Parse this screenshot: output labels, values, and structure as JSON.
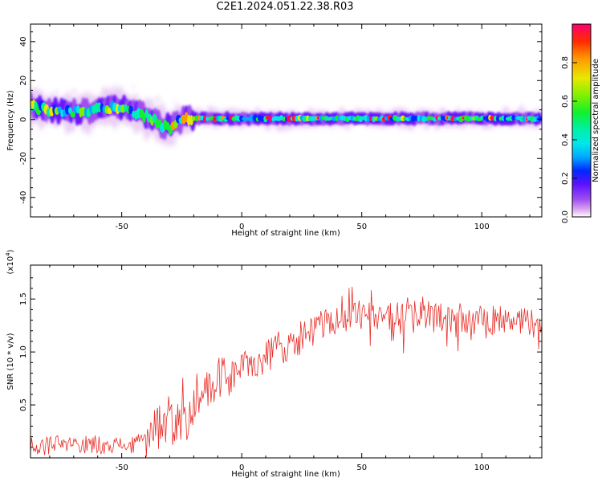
{
  "title": "C2E1.2024.051.22.38.R03",
  "chart_data": [
    {
      "type": "heatmap",
      "xlabel": "Height of straight line (km)",
      "ylabel": "Frequency (Hz)",
      "xlim": [
        -88,
        125
      ],
      "ylim": [
        -50,
        49
      ],
      "xticks": [
        -50,
        0,
        50,
        100
      ],
      "yticks": [
        -40,
        -20,
        0,
        20,
        40
      ],
      "colorbar": {
        "label": "Normalized spectral amplitude",
        "range": [
          0,
          1
        ],
        "ticks": [
          "0.0",
          "0.2",
          "0.4",
          "0.6",
          "0.8"
        ],
        "colors": [
          "#ffffff",
          "#e3b6f0",
          "#a050ef",
          "#5a10ff",
          "#0028ff",
          "#00a8ff",
          "#00e8e8",
          "#00f0a0",
          "#10f030",
          "#80f000",
          "#e8e800",
          "#ff9a00",
          "#ff2a00",
          "#ff0070"
        ]
      },
      "ridge": {
        "x": [
          -88,
          -80,
          -70,
          -60,
          -50,
          -40,
          -35,
          -30,
          -25,
          -20,
          0,
          50,
          100,
          125
        ],
        "freq_hz": [
          7,
          5,
          4,
          5,
          6,
          2,
          -2,
          -4,
          0,
          0.5,
          0.5,
          0.5,
          0.5,
          0.5
        ]
      }
    },
    {
      "type": "line",
      "xlabel": "Height of straight line (km)",
      "ylabel": "SNR (10 * v/v)",
      "yscale_label": "(x10^4)",
      "xlim": [
        -88,
        125
      ],
      "ylim": [
        0,
        1.82
      ],
      "xticks": [
        -50,
        0,
        50,
        100
      ],
      "yticks": [
        0.5,
        1.0,
        1.5
      ],
      "ytick_labels": [
        "0.5",
        "1.0",
        "1.5"
      ],
      "series": [
        {
          "color": "#e8302a",
          "x": [
            -88,
            -80,
            -70,
            -60,
            -50,
            -45,
            -40,
            -35,
            -30,
            -25,
            -20,
            -15,
            -10,
            -5,
            0,
            5,
            10,
            15,
            20,
            25,
            30,
            35,
            40,
            45,
            50,
            60,
            70,
            80,
            90,
            100,
            110,
            120,
            125
          ],
          "values": [
            0.1,
            0.12,
            0.12,
            0.13,
            0.12,
            0.11,
            0.18,
            0.3,
            0.32,
            0.35,
            0.4,
            0.6,
            0.72,
            0.78,
            0.85,
            0.9,
            0.95,
            1.05,
            1.05,
            1.15,
            1.2,
            1.25,
            1.28,
            1.33,
            1.35,
            1.33,
            1.36,
            1.35,
            1.3,
            1.3,
            1.3,
            1.28,
            1.25
          ]
        }
      ]
    }
  ]
}
